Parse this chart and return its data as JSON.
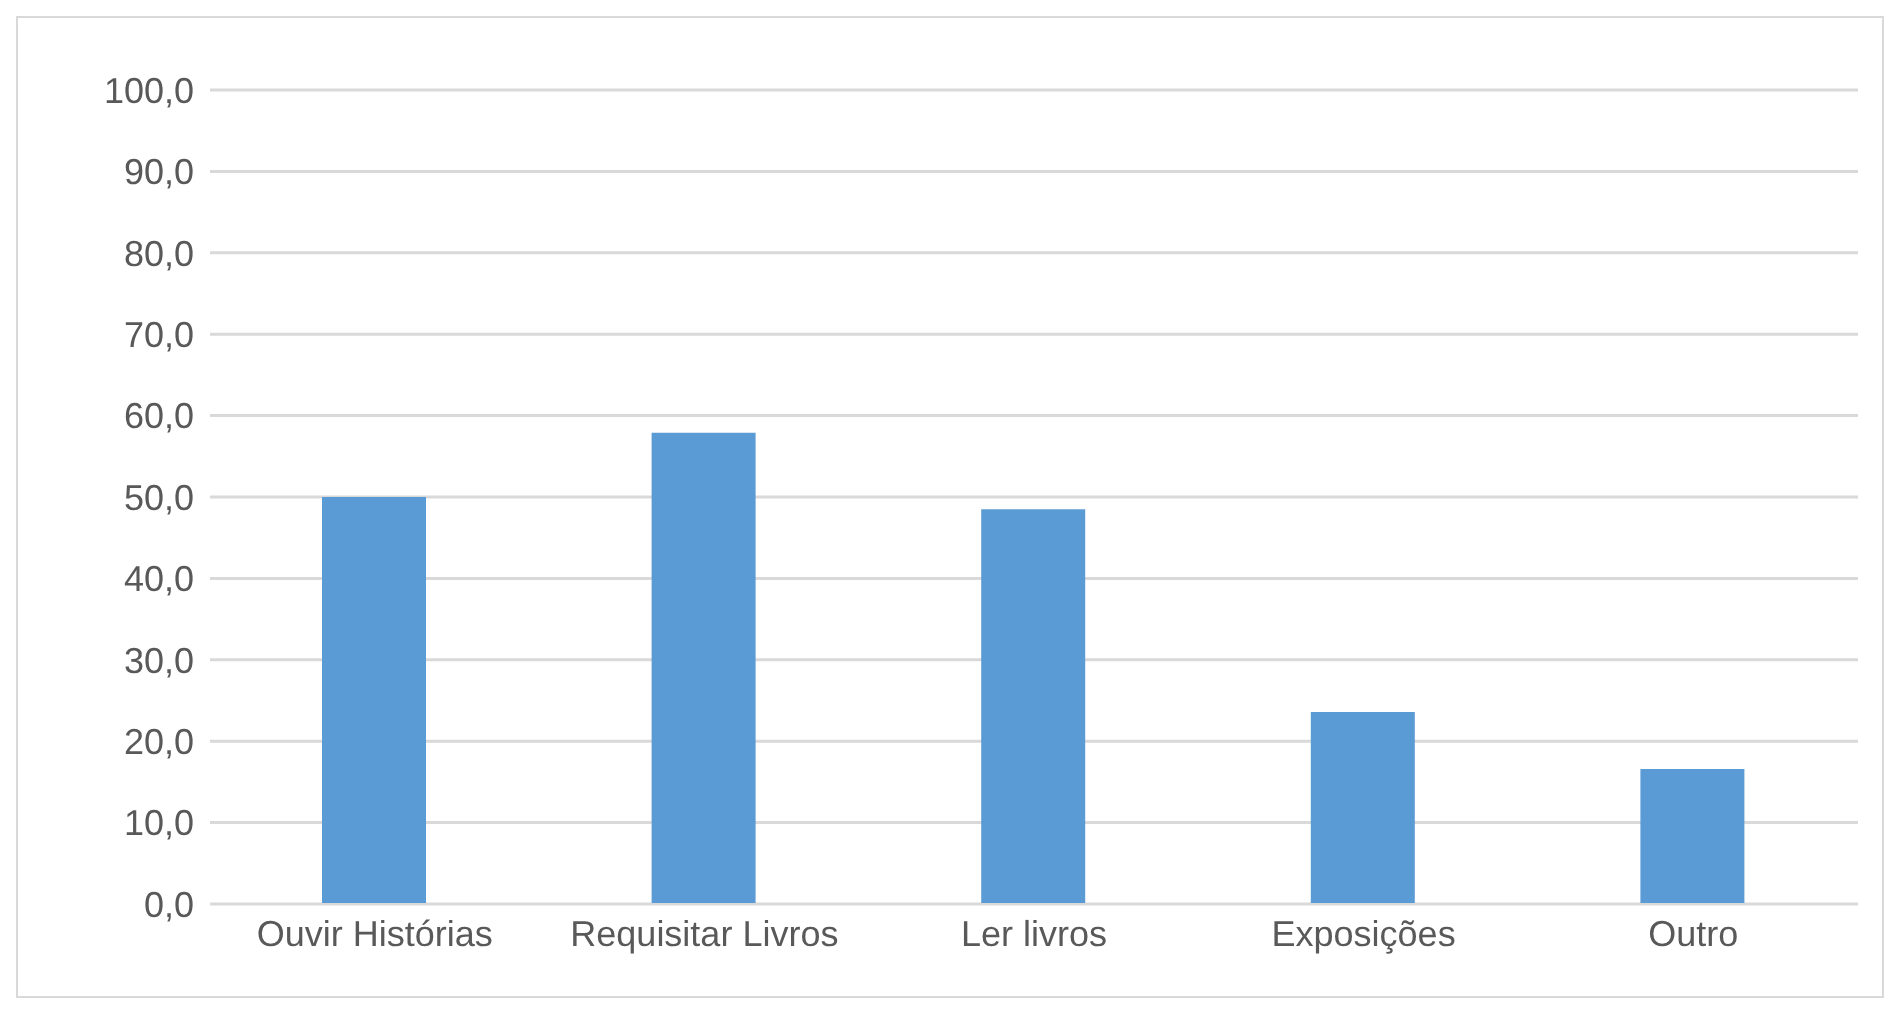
{
  "chart_data": {
    "type": "bar",
    "categories": [
      "Ouvir Histórias",
      "Requisitar Livros",
      "Ler livros",
      "Exposições",
      "Outro"
    ],
    "values": [
      50.0,
      57.9,
      48.5,
      23.6,
      16.6
    ],
    "color": "#5b9bd5",
    "ylim": [
      0,
      100
    ],
    "yticks": [
      {
        "value": 0,
        "label": "0,0"
      },
      {
        "value": 10,
        "label": "10,0"
      },
      {
        "value": 20,
        "label": "20,0"
      },
      {
        "value": 30,
        "label": "30,0"
      },
      {
        "value": 40,
        "label": "40,0"
      },
      {
        "value": 50,
        "label": "50,0"
      },
      {
        "value": 60,
        "label": "60,0"
      },
      {
        "value": 70,
        "label": "70,0"
      },
      {
        "value": 80,
        "label": "80,0"
      },
      {
        "value": 90,
        "label": "90,0"
      },
      {
        "value": 100,
        "label": "100,0"
      }
    ],
    "grid": "y"
  }
}
